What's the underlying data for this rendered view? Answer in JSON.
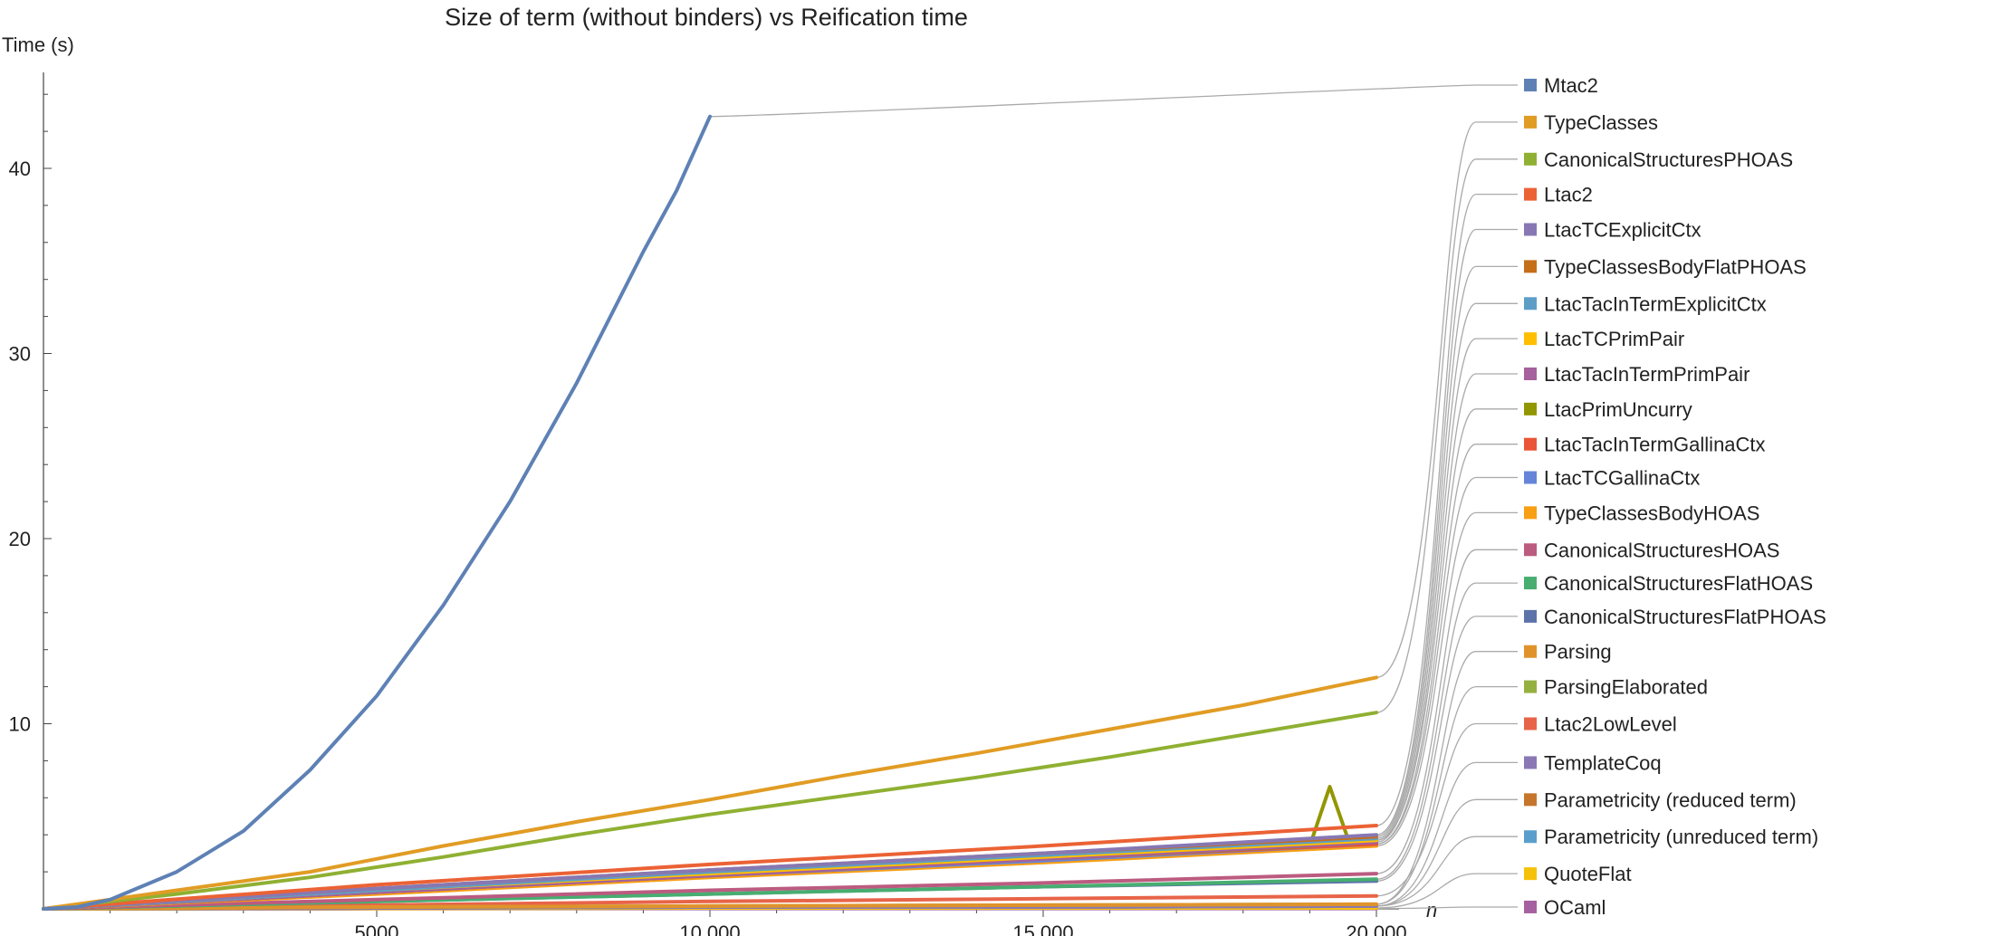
{
  "chart_data": {
    "type": "line",
    "title": "Size of term (without binders) vs Reification time",
    "xlabel": "n",
    "ylabel": "Time (s)",
    "xlim": [
      0,
      20000
    ],
    "ylim": [
      0,
      45
    ],
    "xticks": [
      5000,
      10000,
      15000,
      20000
    ],
    "xtick_labels": [
      "5000",
      "10 000",
      "15 000",
      "20 000"
    ],
    "yticks": [
      10,
      20,
      30,
      40
    ],
    "ytick_labels": [
      "10",
      "20",
      "30",
      "40"
    ],
    "grid": false,
    "legend_position": "right",
    "series": [
      {
        "name": "Mtac2",
        "color": "#5E81B5",
        "x": [
          0,
          500,
          1000,
          2000,
          3000,
          4000,
          5000,
          6000,
          7000,
          8000,
          9000,
          9500,
          10000
        ],
        "y": [
          0,
          0.1,
          0.5,
          2,
          4.2,
          7.5,
          11.5,
          16.4,
          22,
          28.4,
          35.5,
          38.8,
          42.8
        ],
        "label_y": 44.5
      },
      {
        "name": "TypeClasses",
        "color": "#E19C24",
        "x": [
          0,
          2000,
          4000,
          6000,
          8000,
          10000,
          12000,
          14000,
          16000,
          18000,
          20000
        ],
        "y": [
          0,
          1,
          2,
          3.4,
          4.7,
          5.9,
          7.2,
          8.4,
          9.7,
          11,
          12.5
        ],
        "label_y": 42.5
      },
      {
        "name": "CanonicalStructuresPHOAS",
        "color": "#8FB032",
        "x": [
          0,
          2000,
          4000,
          6000,
          8000,
          10000,
          12000,
          14000,
          16000,
          18000,
          20000
        ],
        "y": [
          0,
          0.8,
          1.7,
          2.8,
          4,
          5.1,
          6.1,
          7.1,
          8.2,
          9.4,
          10.6
        ],
        "label_y": 40.5
      },
      {
        "name": "Ltac2",
        "color": "#EB6235",
        "x": [
          0,
          5000,
          10000,
          15000,
          20000
        ],
        "y": [
          0,
          1.3,
          2.4,
          3.4,
          4.5
        ],
        "label_y": 38.6
      },
      {
        "name": "LtacTCExplicitCtx",
        "color": "#8778B3",
        "x": [
          0,
          5000,
          10000,
          15000,
          20000
        ],
        "y": [
          0,
          1.1,
          2.1,
          3,
          4
        ],
        "label_y": 36.7
      },
      {
        "name": "TypeClassesBodyFlatPHOAS",
        "color": "#C56E1A",
        "x": [
          0,
          5000,
          10000,
          15000,
          20000
        ],
        "y": [
          0,
          1.1,
          2.1,
          3,
          3.9
        ],
        "label_y": 34.7
      },
      {
        "name": "LtacTacInTermExplicitCtx",
        "color": "#5D9EC7",
        "x": [
          0,
          5000,
          10000,
          15000,
          20000
        ],
        "y": [
          0,
          1,
          2,
          2.9,
          3.8
        ],
        "label_y": 32.7
      },
      {
        "name": "LtacTCPrimPair",
        "color": "#FFBF00",
        "x": [
          0,
          5000,
          10000,
          15000,
          20000
        ],
        "y": [
          0,
          1,
          1.9,
          2.8,
          3.7
        ],
        "label_y": 30.8
      },
      {
        "name": "LtacTacInTermPrimPair",
        "color": "#A5609D",
        "x": [
          0,
          5000,
          10000,
          15000,
          20000
        ],
        "y": [
          0,
          0.9,
          1.8,
          2.7,
          3.6
        ],
        "label_y": 28.9
      },
      {
        "name": "LtacPrimUncurry",
        "color": "#929600",
        "x": [
          0,
          5000,
          10000,
          15000,
          19000,
          19300,
          19600,
          20000
        ],
        "y": [
          0,
          0.9,
          1.8,
          2.7,
          3.4,
          6.6,
          3.5,
          3.7
        ],
        "label_y": 27
      },
      {
        "name": "LtacTacInTermGallinaCtx",
        "color": "#E95536",
        "x": [
          0,
          5000,
          10000,
          15000,
          20000
        ],
        "y": [
          0,
          0.9,
          1.8,
          2.7,
          3.5
        ],
        "label_y": 25.1
      },
      {
        "name": "LtacTCGallinaCtx",
        "color": "#6685D9",
        "x": [
          0,
          5000,
          10000,
          15000,
          20000
        ],
        "y": [
          0,
          0.9,
          1.8,
          2.6,
          3.5
        ],
        "label_y": 23.3
      },
      {
        "name": "TypeClassesBodyHOAS",
        "color": "#F89F13",
        "x": [
          0,
          5000,
          10000,
          15000,
          20000
        ],
        "y": [
          0,
          0.8,
          1.7,
          2.5,
          3.4
        ],
        "label_y": 21.4
      },
      {
        "name": "CanonicalStructuresHOAS",
        "color": "#BC5B80",
        "x": [
          0,
          5000,
          10000,
          15000,
          20000
        ],
        "y": [
          0,
          0.5,
          1,
          1.4,
          1.9
        ],
        "label_y": 19.4
      },
      {
        "name": "CanonicalStructuresFlatHOAS",
        "color": "#47AE70",
        "x": [
          0,
          5000,
          10000,
          15000,
          20000
        ],
        "y": [
          0,
          0.4,
          0.8,
          1.2,
          1.6
        ],
        "label_y": 17.6
      },
      {
        "name": "CanonicalStructuresFlatPHOAS",
        "color": "#5C73AA",
        "x": [
          0,
          5000,
          10000,
          15000,
          20000
        ],
        "y": [
          0,
          0.4,
          0.8,
          1.2,
          1.5
        ],
        "label_y": 15.8
      },
      {
        "name": "Parsing",
        "color": "#E0932B",
        "x": [
          0,
          5000,
          10000,
          15000,
          20000
        ],
        "y": [
          0,
          0.1,
          0.15,
          0.2,
          0.25
        ],
        "label_y": 13.9
      },
      {
        "name": "ParsingElaborated",
        "color": "#96B040",
        "x": [
          0,
          5000,
          10000,
          15000,
          20000
        ],
        "y": [
          0,
          0.1,
          0.15,
          0.2,
          0.25
        ],
        "label_y": 12
      },
      {
        "name": "Ltac2LowLevel",
        "color": "#E86448",
        "x": [
          0,
          5000,
          10000,
          15000,
          20000
        ],
        "y": [
          0,
          0.2,
          0.4,
          0.55,
          0.7
        ],
        "label_y": 10
      },
      {
        "name": "TemplateCoq",
        "color": "#8A78B5",
        "x": [
          0,
          5000,
          10000,
          15000,
          20000
        ],
        "y": [
          0,
          0.05,
          0.1,
          0.1,
          0.15
        ],
        "label_y": 7.9
      },
      {
        "name": "Parametricity (reduced term)",
        "color": "#C5762C",
        "x": [
          0,
          5000,
          10000,
          15000,
          20000
        ],
        "y": [
          0,
          0.05,
          0.1,
          0.1,
          0.15
        ],
        "label_y": 5.9
      },
      {
        "name": "Parametricity (unreduced term)",
        "color": "#5A9FCC",
        "x": [
          0,
          5000,
          10000,
          15000,
          20000
        ],
        "y": [
          0,
          0.05,
          0.1,
          0.1,
          0.15
        ],
        "label_y": 3.9
      },
      {
        "name": "QuoteFlat",
        "color": "#F6C10B",
        "x": [
          0,
          5000,
          10000,
          15000,
          20000
        ],
        "y": [
          0,
          0.02,
          0.05,
          0.05,
          0.05
        ],
        "label_y": 1.9
      },
      {
        "name": "OCaml",
        "color": "#A5619F",
        "x": [
          0,
          5000,
          10000,
          15000,
          20000
        ],
        "y": [
          0,
          0.01,
          0.02,
          0.02,
          0.02
        ],
        "label_y": 0.1
      }
    ]
  }
}
